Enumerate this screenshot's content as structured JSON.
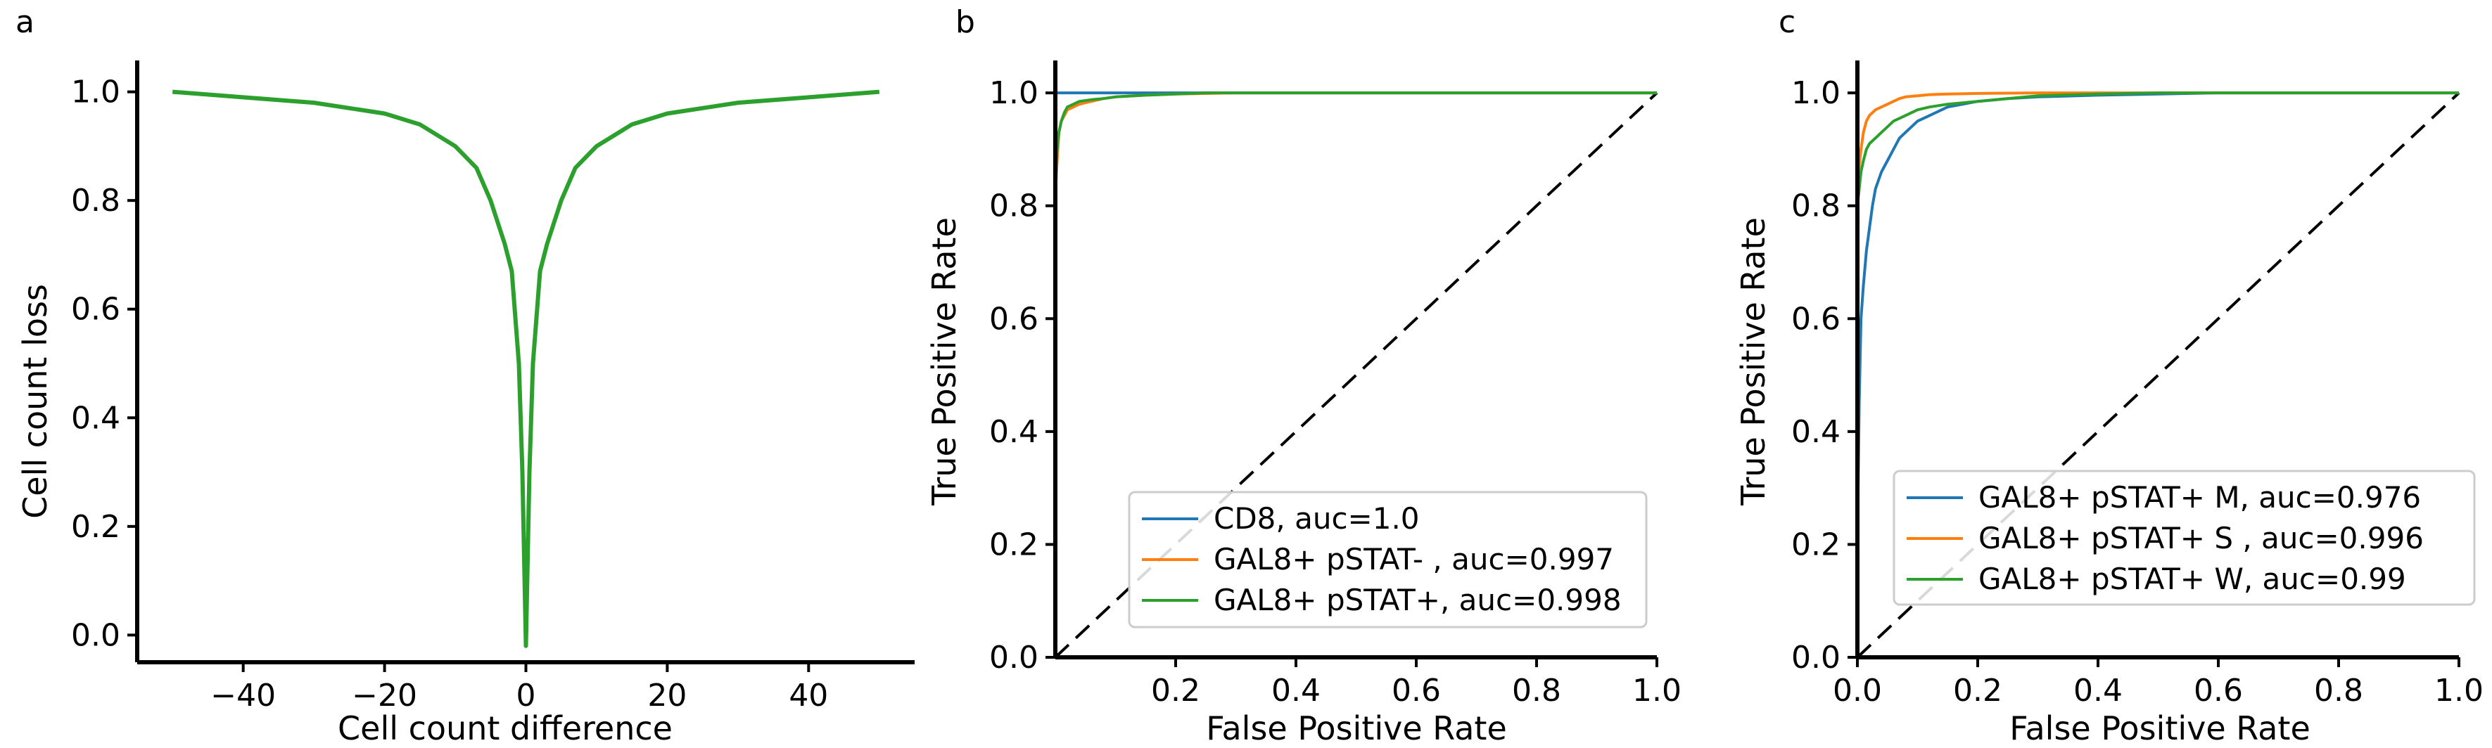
{
  "panels": [
    {
      "letter": "a",
      "xlabel": "Cell count difference",
      "ylabel": "Cell count loss",
      "xlim": [
        -55,
        55
      ],
      "ylim": [
        -0.05,
        1.05
      ],
      "xticks": [
        -40,
        -20,
        0,
        20,
        40
      ],
      "xtick_labels": [
        "−40",
        "−20",
        "0",
        "20",
        "40"
      ],
      "yticks": [
        0.0,
        0.2,
        0.4,
        0.6,
        0.8,
        1.0
      ],
      "ytick_labels": [
        "0.0",
        "0.2",
        "0.4",
        "0.6",
        "0.8",
        "1.0"
      ]
    },
    {
      "letter": "b",
      "xlabel": "False Positive Rate",
      "ylabel": "True Positive Rate",
      "xlim": [
        0,
        1
      ],
      "ylim": [
        0,
        1.05
      ],
      "xticks": [
        0.2,
        0.4,
        0.6,
        0.8,
        1.0
      ],
      "xtick_labels": [
        "0.2",
        "0.4",
        "0.6",
        "0.8",
        "1.0"
      ],
      "yticks": [
        0.0,
        0.2,
        0.4,
        0.6,
        0.8,
        1.0
      ],
      "ytick_labels": [
        "0.0",
        "0.2",
        "0.4",
        "0.6",
        "0.8",
        "1.0"
      ]
    },
    {
      "letter": "c",
      "xlabel": "False Positive Rate",
      "ylabel": "True Positive Rate",
      "xlim": [
        0,
        1
      ],
      "ylim": [
        0,
        1.05
      ],
      "xticks": [
        0.0,
        0.2,
        0.4,
        0.6,
        0.8,
        1.0
      ],
      "xtick_labels": [
        "0.0",
        "0.2",
        "0.4",
        "0.6",
        "0.8",
        "1.0"
      ],
      "yticks": [
        0.0,
        0.2,
        0.4,
        0.6,
        0.8,
        1.0
      ],
      "ytick_labels": [
        "0.0",
        "0.2",
        "0.4",
        "0.6",
        "0.8",
        "1.0"
      ]
    }
  ],
  "chart_data": [
    {
      "type": "line",
      "xlabel": "Cell count difference",
      "ylabel": "Cell count loss",
      "xlim": [
        -55,
        55
      ],
      "ylim": [
        -0.05,
        1.05
      ],
      "grid": false,
      "series": [
        {
          "color": "#2ca02c",
          "x": [
            -50,
            -40,
            -30,
            -20,
            -15,
            -10,
            -7,
            -5,
            -3,
            -2,
            -1,
            -0.5,
            0,
            0.5,
            1,
            2,
            3,
            5,
            7,
            10,
            15,
            20,
            30,
            40,
            50
          ],
          "y": [
            1.0,
            0.99,
            0.98,
            0.96,
            0.94,
            0.9,
            0.86,
            0.8,
            0.72,
            0.67,
            0.5,
            0.3,
            -0.02,
            0.3,
            0.5,
            0.67,
            0.72,
            0.8,
            0.86,
            0.9,
            0.94,
            0.96,
            0.98,
            0.99,
            1.0
          ]
        }
      ]
    },
    {
      "type": "line",
      "xlabel": "False Positive Rate",
      "ylabel": "True Positive Rate",
      "xlim": [
        0,
        1
      ],
      "ylim": [
        0,
        1.05
      ],
      "grid": false,
      "legend": "lower-right",
      "series": [
        {
          "name": "CD8, auc=1.0",
          "color": "#1f77b4",
          "x": [
            0,
            0,
            1
          ],
          "y": [
            0,
            1,
            1
          ]
        },
        {
          "name": "GAL8+ pSTAT- , auc=0.997",
          "color": "#ff7f0e",
          "x": [
            0,
            0,
            0.003,
            0.006,
            0.01,
            0.015,
            0.02,
            0.03,
            0.04,
            0.06,
            0.08,
            0.1,
            0.15,
            0.2,
            0.3,
            1
          ],
          "y": [
            0,
            0.82,
            0.88,
            0.93,
            0.95,
            0.96,
            0.97,
            0.975,
            0.98,
            0.985,
            0.99,
            0.993,
            0.996,
            0.998,
            1,
            1
          ]
        },
        {
          "name": "GAL8+ pSTAT+, auc=0.998",
          "color": "#2ca02c",
          "x": [
            0,
            0,
            0.003,
            0.006,
            0.01,
            0.015,
            0.02,
            0.03,
            0.04,
            0.06,
            0.08,
            0.1,
            0.15,
            0.2,
            0.25,
            1
          ],
          "y": [
            0,
            0.85,
            0.9,
            0.93,
            0.95,
            0.965,
            0.975,
            0.98,
            0.985,
            0.988,
            0.99,
            0.993,
            0.996,
            0.998,
            1,
            1
          ]
        }
      ]
    },
    {
      "type": "line",
      "xlabel": "False Positive Rate",
      "ylabel": "True Positive Rate",
      "xlim": [
        0,
        1
      ],
      "ylim": [
        0,
        1.05
      ],
      "grid": false,
      "legend": "lower-right",
      "series": [
        {
          "name": "GAL8+ pSTAT+ M, auc=0.976",
          "color": "#1f77b4",
          "x": [
            0,
            0,
            0.003,
            0.006,
            0.01,
            0.015,
            0.02,
            0.025,
            0.03,
            0.04,
            0.05,
            0.06,
            0.07,
            0.08,
            0.1,
            0.12,
            0.15,
            0.2,
            0.25,
            0.3,
            0.4,
            0.5,
            0.6,
            1
          ],
          "y": [
            0,
            0.2,
            0.45,
            0.6,
            0.66,
            0.72,
            0.76,
            0.8,
            0.83,
            0.86,
            0.88,
            0.9,
            0.92,
            0.93,
            0.95,
            0.96,
            0.975,
            0.985,
            0.99,
            0.993,
            0.996,
            0.998,
            1,
            1
          ]
        },
        {
          "name": "GAL8+ pSTAT+ S , auc=0.996",
          "color": "#ff7f0e",
          "x": [
            0,
            0,
            0.003,
            0.006,
            0.01,
            0.015,
            0.02,
            0.03,
            0.04,
            0.05,
            0.06,
            0.07,
            0.08,
            0.1,
            0.12,
            0.15,
            0.2,
            0.3,
            1
          ],
          "y": [
            0,
            0.84,
            0.87,
            0.9,
            0.93,
            0.95,
            0.96,
            0.97,
            0.975,
            0.98,
            0.985,
            0.99,
            0.993,
            0.995,
            0.997,
            0.998,
            0.999,
            1,
            1
          ]
        },
        {
          "name": "GAL8+ pSTAT+ W, auc=0.99",
          "color": "#2ca02c",
          "x": [
            0,
            0,
            0.003,
            0.006,
            0.01,
            0.015,
            0.02,
            0.03,
            0.04,
            0.05,
            0.06,
            0.08,
            0.1,
            0.12,
            0.15,
            0.2,
            0.25,
            0.3,
            0.4,
            0.5,
            1
          ],
          "y": [
            0,
            0.8,
            0.83,
            0.86,
            0.88,
            0.9,
            0.91,
            0.92,
            0.93,
            0.94,
            0.95,
            0.96,
            0.97,
            0.975,
            0.98,
            0.985,
            0.99,
            0.995,
            0.998,
            1,
            1
          ]
        }
      ]
    }
  ]
}
